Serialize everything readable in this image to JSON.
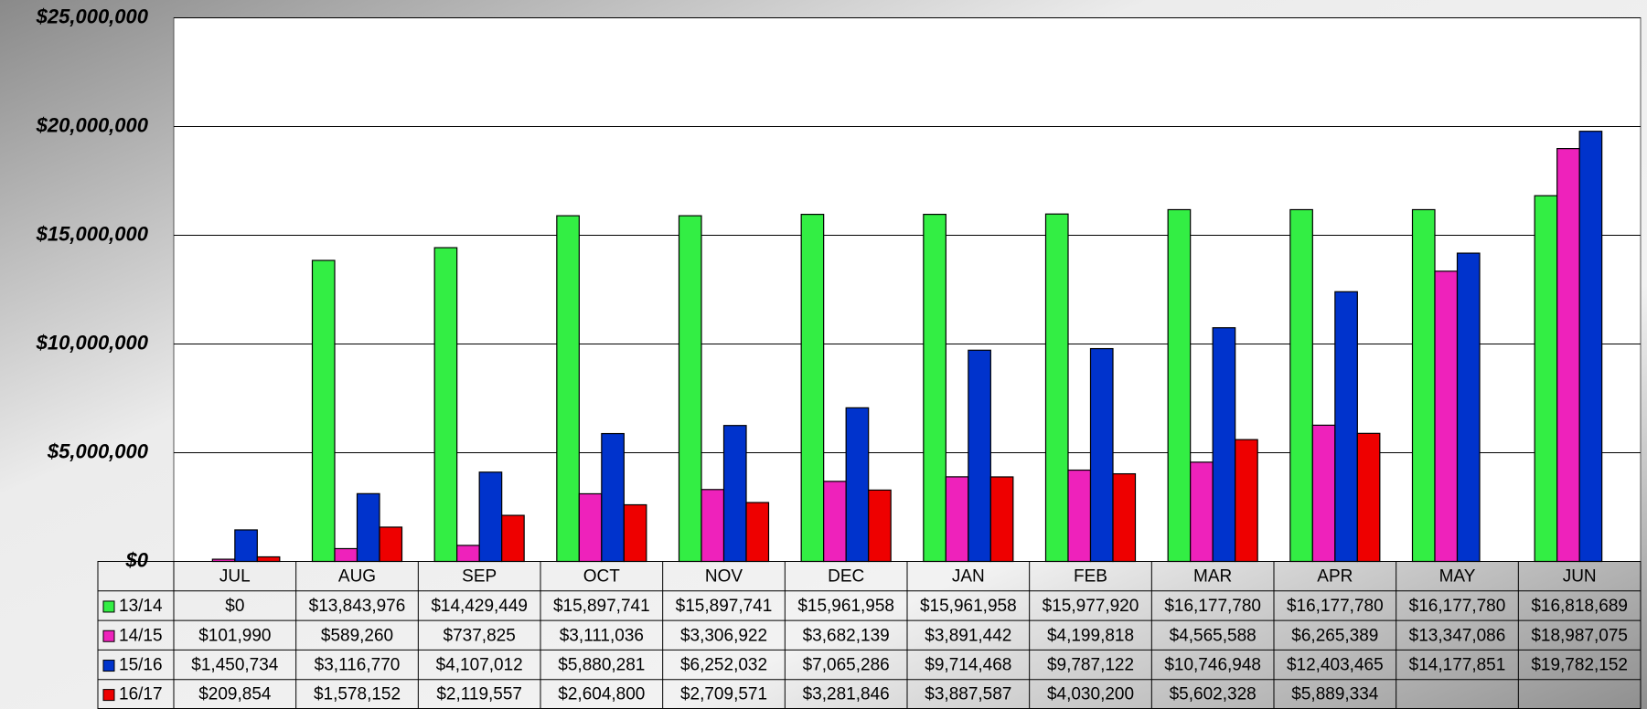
{
  "chart_data": {
    "type": "bar",
    "categories": [
      "JUL",
      "AUG",
      "SEP",
      "OCT",
      "NOV",
      "DEC",
      "JAN",
      "FEB",
      "MAR",
      "APR",
      "MAY",
      "JUN"
    ],
    "series": [
      {
        "name": "13/14",
        "color": "#33ee44",
        "values": [
          0,
          13843976,
          14429449,
          15897741,
          15897741,
          15961958,
          15961958,
          15977920,
          16177780,
          16177780,
          16177780,
          16818689
        ],
        "value_labels": [
          "$0",
          "$13,843,976",
          "$14,429,449",
          "$15,897,741",
          "$15,897,741",
          "$15,961,958",
          "$15,961,958",
          "$15,977,920",
          "$16,177,780",
          "$16,177,780",
          "$16,177,780",
          "$16,818,689"
        ]
      },
      {
        "name": "14/15",
        "color": "#ee22bb",
        "values": [
          101990,
          589260,
          737825,
          3111036,
          3306922,
          3682139,
          3891442,
          4199818,
          4565588,
          6265389,
          13347086,
          18987075
        ],
        "value_labels": [
          "$101,990",
          "$589,260",
          "$737,825",
          "$3,111,036",
          "$3,306,922",
          "$3,682,139",
          "$3,891,442",
          "$4,199,818",
          "$4,565,588",
          "$6,265,389",
          "$13,347,086",
          "$18,987,075"
        ]
      },
      {
        "name": "15/16",
        "color": "#0033cc",
        "values": [
          1450734,
          3116770,
          4107012,
          5880281,
          6252032,
          7065286,
          9714468,
          9787122,
          10746948,
          12403465,
          14177851,
          19782152
        ],
        "value_labels": [
          "$1,450,734",
          "$3,116,770",
          "$4,107,012",
          "$5,880,281",
          "$6,252,032",
          "$7,065,286",
          "$9,714,468",
          "$9,787,122",
          "$10,746,948",
          "$12,403,465",
          "$14,177,851",
          "$19,782,152"
        ]
      },
      {
        "name": "16/17",
        "color": "#ee0000",
        "values": [
          209854,
          1578152,
          2119557,
          2604800,
          2709571,
          3281846,
          3887587,
          4030200,
          5602328,
          5889334,
          null,
          null
        ],
        "value_labels": [
          "$209,854",
          "$1,578,152",
          "$2,119,557",
          "$2,604,800",
          "$2,709,571",
          "$3,281,846",
          "$3,887,587",
          "$4,030,200",
          "$5,602,328",
          "$5,889,334",
          null,
          null
        ]
      }
    ],
    "ylim": [
      0,
      25000000
    ],
    "yticks": [
      {
        "value": 0,
        "label": "$0"
      },
      {
        "value": 5000000,
        "label": "$5,000,000"
      },
      {
        "value": 10000000,
        "label": "$10,000,000"
      },
      {
        "value": 15000000,
        "label": "$15,000,000"
      },
      {
        "value": 20000000,
        "label": "$20,000,000"
      },
      {
        "value": 25000000,
        "label": "$25,000,000"
      }
    ],
    "grid": true
  }
}
